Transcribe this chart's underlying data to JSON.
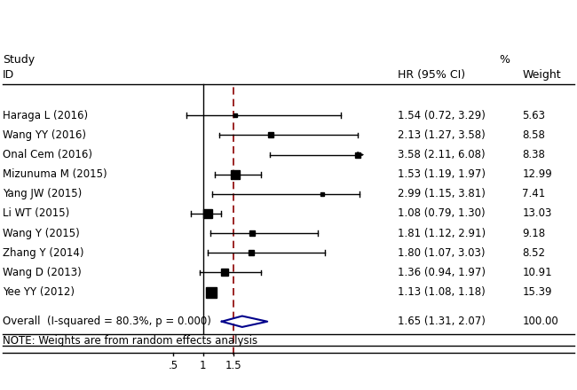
{
  "studies": [
    {
      "id": "Haraga L (2016)",
      "hr": 1.54,
      "lo": 0.72,
      "hi": 3.29,
      "weight": "5.63",
      "hr_text": "1.54 (0.72, 3.29)"
    },
    {
      "id": "Wang YY (2016)",
      "hr": 2.13,
      "lo": 1.27,
      "hi": 3.58,
      "weight": "8.58",
      "hr_text": "2.13 (1.27, 3.58)"
    },
    {
      "id": "Onal Cem (2016)",
      "hr": 3.58,
      "lo": 2.11,
      "hi": 6.08,
      "weight": "8.38",
      "hr_text": "3.58 (2.11, 6.08)",
      "arrow": true
    },
    {
      "id": "Mizunuma M (2015)",
      "hr": 1.53,
      "lo": 1.19,
      "hi": 1.97,
      "weight": "12.99",
      "hr_text": "1.53 (1.19, 1.97)"
    },
    {
      "id": "Yang JW (2015)",
      "hr": 2.99,
      "lo": 1.15,
      "hi": 3.81,
      "weight": "7.41",
      "hr_text": "2.99 (1.15, 3.81)"
    },
    {
      "id": "Li WT (2015)",
      "hr": 1.08,
      "lo": 0.79,
      "hi": 1.3,
      "weight": "13.03",
      "hr_text": "1.08 (0.79, 1.30)"
    },
    {
      "id": "Wang Y (2015)",
      "hr": 1.81,
      "lo": 1.12,
      "hi": 2.91,
      "weight": "9.18",
      "hr_text": "1.81 (1.12, 2.91)"
    },
    {
      "id": "Zhang Y (2014)",
      "hr": 1.8,
      "lo": 1.07,
      "hi": 3.03,
      "weight": "8.52",
      "hr_text": "1.80 (1.07, 3.03)"
    },
    {
      "id": "Wang D (2013)",
      "hr": 1.36,
      "lo": 0.94,
      "hi": 1.97,
      "weight": "10.91",
      "hr_text": "1.36 (0.94, 1.97)"
    },
    {
      "id": "Yee YY (2012)",
      "hr": 1.13,
      "lo": 1.08,
      "hi": 1.18,
      "weight": "15.39",
      "hr_text": "1.13 (1.08, 1.18)"
    }
  ],
  "overall": {
    "hr": 1.65,
    "lo": 1.31,
    "hi": 2.07,
    "label": "Overall  (I-squared = 80.3%, p = 0.000)",
    "weight": "100.00",
    "hr_text": "1.65 (1.31, 2.07)"
  },
  "xmin": 0.5,
  "xmax": 4.2,
  "xticks": [
    0.5,
    1.0,
    1.5
  ],
  "xticklabels": [
    ".5",
    "1",
    "1.5"
  ],
  "ref_line": 1.0,
  "dashed_line": 1.5,
  "clip_hi": 3.6,
  "note": "NOTE: Weights are from random effects analysis",
  "box_color": "black",
  "diamond_color": "#00008B",
  "dashed_color": "#8B0000",
  "line_color": "black",
  "max_weight": 15.39,
  "min_weight": 5.63
}
